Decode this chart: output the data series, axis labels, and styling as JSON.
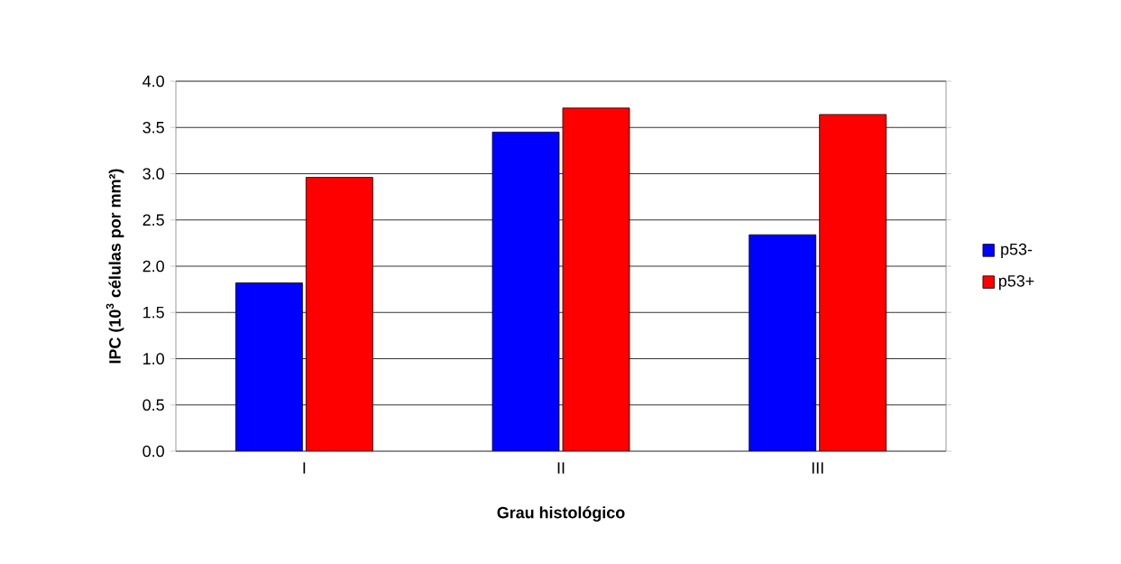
{
  "chart_data": {
    "type": "bar",
    "xlabel": "Grau histológico",
    "ylabel": "IPC (10$^{3}$ células por mm²)",
    "categories": [
      "I",
      "II",
      "III"
    ],
    "series": [
      {
        "name": "p53-",
        "color": "#0000ff",
        "values": [
          1.82,
          3.45,
          2.34
        ]
      },
      {
        "name": "p53+",
        "color": "#ff0000",
        "values": [
          2.96,
          3.71,
          3.64
        ]
      }
    ],
    "ylim": [
      0,
      4
    ],
    "yticks": [
      {
        "value": 0,
        "label": "0.0"
      },
      {
        "value": 0.5,
        "label": "0.5"
      },
      {
        "value": 1,
        "label": "1.0"
      },
      {
        "value": 1.5,
        "label": "1.5"
      },
      {
        "value": 2,
        "label": "2.0"
      },
      {
        "value": 2.5,
        "label": "2.5"
      },
      {
        "value": 3,
        "label": "3.0"
      },
      {
        "value": 3.5,
        "label": "3.5"
      },
      {
        "value": 4,
        "label": "4.0"
      }
    ],
    "grid": "y",
    "legend": "right"
  }
}
